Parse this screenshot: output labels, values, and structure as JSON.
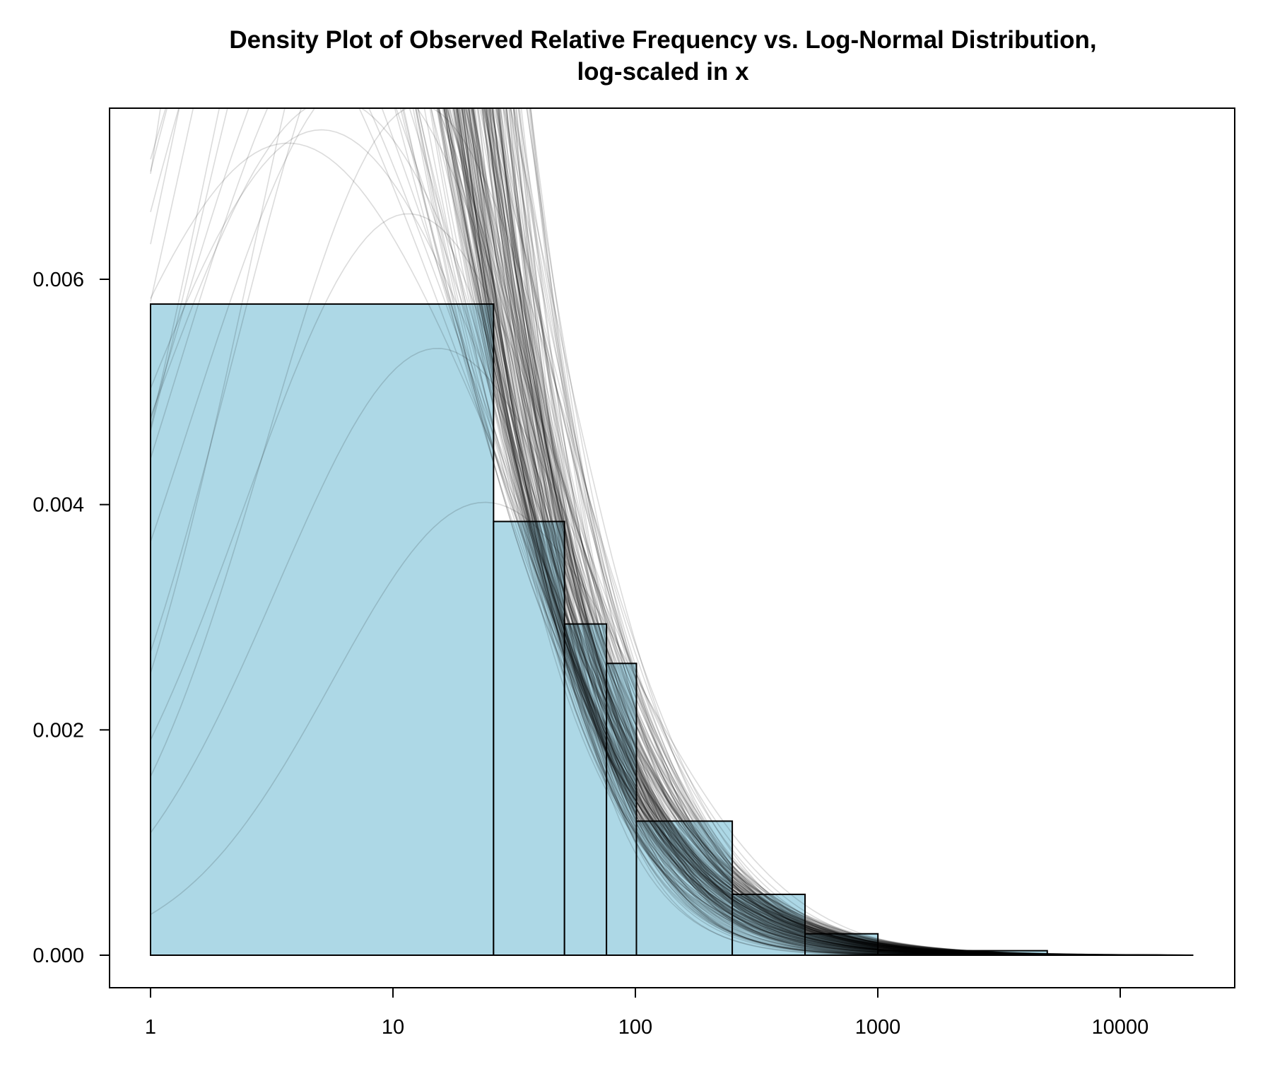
{
  "chart_data": {
    "type": "bar",
    "title": "Density Plot of Observed Relative Frequency vs. Log-Normal Distribution,",
    "subtitle": "log-scaled in x",
    "xlabel": "",
    "ylabel": "",
    "x_scale": "log10",
    "xlim": [
      1,
      20000
    ],
    "ylim": [
      0,
      0.0075
    ],
    "x_ticks": [
      {
        "value": 1,
        "label": "1"
      },
      {
        "value": 10,
        "label": "10"
      },
      {
        "value": 100,
        "label": "100"
      },
      {
        "value": 1000,
        "label": "1000"
      },
      {
        "value": 10000,
        "label": "10000"
      }
    ],
    "y_ticks": [
      {
        "value": 0,
        "label": "0.000"
      },
      {
        "value": 0.002,
        "label": "0.002"
      },
      {
        "value": 0.004,
        "label": "0.004"
      },
      {
        "value": 0.006,
        "label": "0.006"
      }
    ],
    "bins": [
      {
        "from": 1,
        "to": 26,
        "density": 0.00578
      },
      {
        "from": 26,
        "to": 51,
        "density": 0.00385
      },
      {
        "from": 51,
        "to": 76,
        "density": 0.00294
      },
      {
        "from": 76,
        "to": 101,
        "density": 0.00259
      },
      {
        "from": 101,
        "to": 251,
        "density": 0.00119
      },
      {
        "from": 251,
        "to": 501,
        "density": 0.00054
      },
      {
        "from": 501,
        "to": 1001,
        "density": 0.00019
      },
      {
        "from": 1001,
        "to": 5001,
        "density": 4e-05
      }
    ],
    "lognormal_fit": {
      "meanlog_range": [
        1.75,
        5.35
      ],
      "sdlog_range": [
        1.4,
        2.9
      ],
      "curve_count": 220
    },
    "baseline": {
      "from": 1,
      "to": 20000
    },
    "colors": {
      "bar_fill": "#add8e6",
      "bar_stroke": "#000000",
      "curve": "#000000",
      "axis": "#000000"
    },
    "grid": false,
    "legend": "none"
  }
}
